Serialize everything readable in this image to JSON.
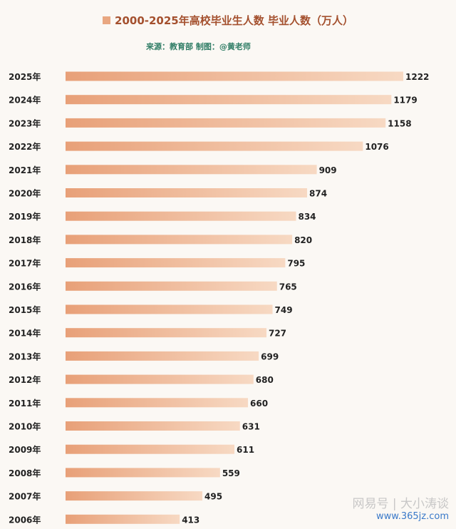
{
  "header": {
    "title": "2000-2025年高校毕业生人数 毕业人数（万人）",
    "source": "来源：教育部  制图：@黄老师"
  },
  "watermark": {
    "text": "网易号 | 大小涛谈",
    "url": "www.365jz.com"
  },
  "colors": {
    "bar_light": "#f7d9c3",
    "bar_dark": "#e8a078",
    "title": "#a4502e",
    "source": "#2f7d65"
  },
  "chart_data": {
    "type": "bar",
    "orientation": "horizontal",
    "title": "2000-2025年高校毕业生人数 毕业人数（万人）",
    "categories": [
      "2025年",
      "2024年",
      "2023年",
      "2022年",
      "2021年",
      "2020年",
      "2019年",
      "2018年",
      "2017年",
      "2016年",
      "2015年",
      "2014年",
      "2013年",
      "2012年",
      "2011年",
      "2010年",
      "2009年",
      "2008年",
      "2007年",
      "2006年"
    ],
    "values": [
      1222,
      1179,
      1158,
      1076,
      909,
      874,
      834,
      820,
      795,
      765,
      749,
      727,
      699,
      680,
      660,
      631,
      611,
      559,
      495,
      413
    ],
    "xlim": [
      0,
      1222
    ],
    "grid": false,
    "legend": "top"
  }
}
